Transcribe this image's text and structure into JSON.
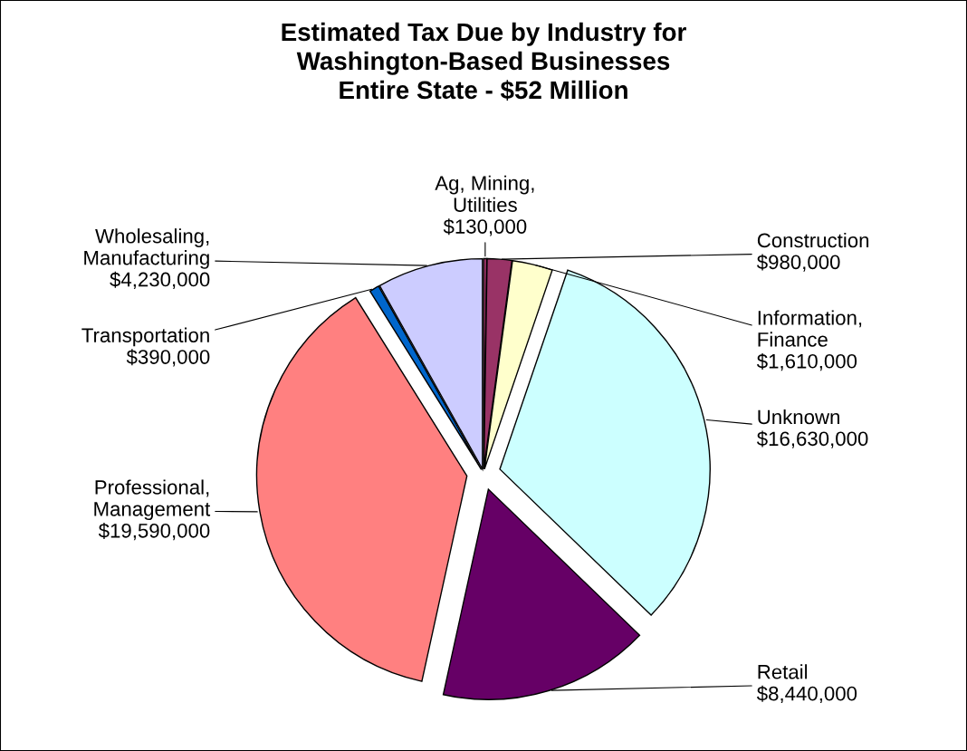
{
  "chart_data": {
    "type": "pie",
    "title": "Estimated Tax Due by Industry for\nWashington-Based Businesses\nEntire State - $52 Million",
    "categories": [
      "Ag, Mining,\nUtilities",
      "Construction",
      "Information,\nFinance",
      "Unknown",
      "Retail",
      "Professional,\nManagement",
      "Transportation",
      "Wholesaling,\nManufacturing"
    ],
    "values": [
      130000,
      980000,
      1610000,
      16630000,
      8440000,
      19590000,
      390000,
      4230000
    ],
    "value_labels": [
      "$130,000",
      "$980,000",
      "$1,610,000",
      "$16,630,000",
      "$8,440,000",
      "$19,590,000",
      "$390,000",
      "$4,230,000"
    ],
    "colors": [
      "#993366",
      "#993366",
      "#ffffcc",
      "#ccffff",
      "#660066",
      "#ff8080",
      "#0066cc",
      "#ccccff"
    ]
  }
}
